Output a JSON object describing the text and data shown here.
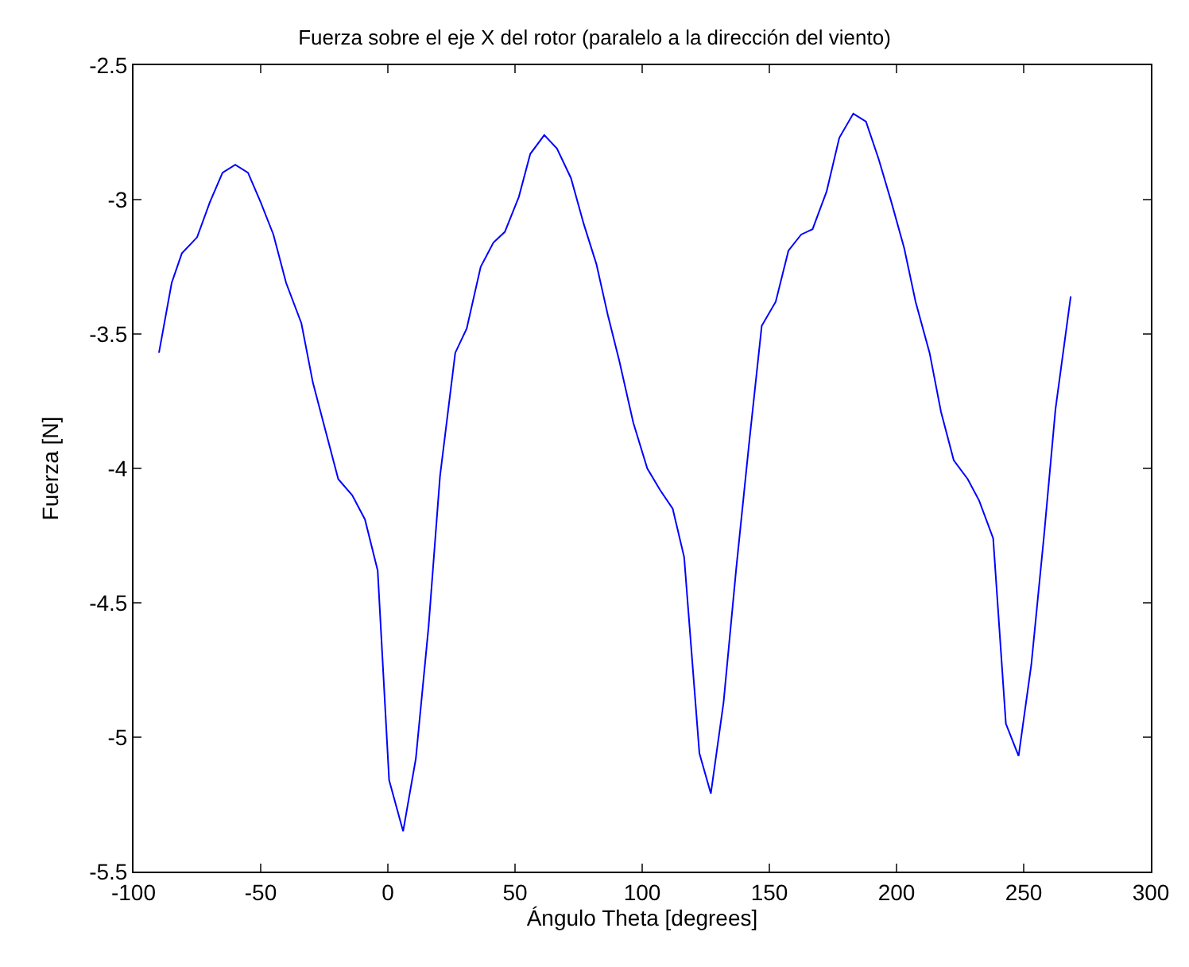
{
  "chart_data": {
    "type": "line",
    "title": "Fuerza sobre el eje X del rotor (paralelo a la dirección del viento)",
    "xlabel": "Ángulo Theta [degrees]",
    "ylabel": "Fuerza [N]",
    "x": [
      -90,
      -85,
      -81,
      -75,
      -70,
      -65,
      -60,
      -55,
      -50,
      -45,
      -40,
      -34,
      -29.5,
      -24.5,
      -19.5,
      -14,
      -9,
      -4,
      0.5,
      6,
      11,
      16,
      20.5,
      26.5,
      31,
      36.5,
      41.5,
      46,
      51.5,
      56,
      61.5,
      66.5,
      72,
      77,
      82,
      86.5,
      91,
      96.5,
      102,
      107,
      112,
      116.5,
      122.5,
      127,
      132,
      137,
      142,
      147,
      152.5,
      157.5,
      162.5,
      167,
      172.5,
      177.5,
      183,
      188,
      193,
      198,
      203,
      207.5,
      213,
      217.5,
      222.5,
      228,
      232.5,
      238,
      243,
      248,
      253,
      258,
      262.5,
      268.5
    ],
    "series": [
      {
        "color": "#0000ff",
        "values": [
          -3.57,
          -3.31,
          -3.2,
          -3.14,
          -3.01,
          -2.9,
          -2.87,
          -2.9,
          -3.01,
          -3.13,
          -3.31,
          -3.46,
          -3.68,
          -3.86,
          -4.04,
          -4.1,
          -4.19,
          -4.38,
          -5.16,
          -5.35,
          -5.08,
          -4.59,
          -4.03,
          -3.57,
          -3.48,
          -3.25,
          -3.16,
          -3.12,
          -2.99,
          -2.83,
          -2.76,
          -2.81,
          -2.92,
          -3.09,
          -3.24,
          -3.43,
          -3.6,
          -3.83,
          -4.0,
          -4.08,
          -4.15,
          -4.33,
          -5.06,
          -5.21,
          -4.87,
          -4.37,
          -3.91,
          -3.47,
          -3.38,
          -3.19,
          -3.13,
          -3.11,
          -2.97,
          -2.77,
          -2.68,
          -2.71,
          -2.85,
          -3.01,
          -3.18,
          -3.38,
          -3.57,
          -3.79,
          -3.97,
          -4.04,
          -4.12,
          -4.26,
          -4.95,
          -5.07,
          -4.73,
          -4.25,
          -3.78,
          -3.36
        ]
      }
    ],
    "xlim": [
      -100,
      300
    ],
    "xticks": [
      -100,
      -50,
      0,
      50,
      100,
      150,
      200,
      250,
      300
    ],
    "ylim": [
      -5.5,
      -2.5
    ],
    "yticks": [
      -5.5,
      -5,
      -4.5,
      -4,
      -3.5,
      -3,
      -2.5
    ]
  }
}
